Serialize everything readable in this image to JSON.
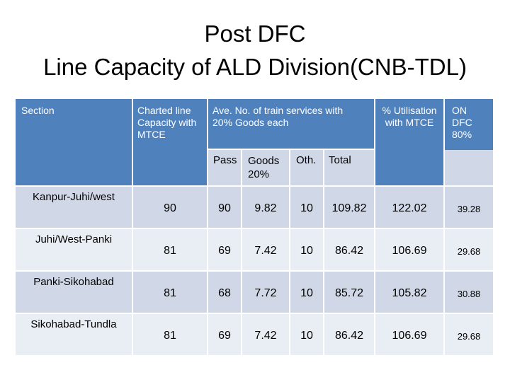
{
  "title_line1": "Post DFC",
  "title_line2": "Line Capacity of ALD Division(CNB-TDL)",
  "headers": {
    "section": "Section",
    "charted_capacity": "Charted line Capacity with MTCE",
    "ave_services": "Ave. No. of train services with 20% Goods each",
    "utilisation": "% Utilisation with MTCE",
    "on_dfc": "ON DFC 80%",
    "sub_pass": "Pass",
    "sub_goods": "Goods 20%",
    "sub_oth": "Oth.",
    "sub_total": "Total"
  },
  "rows": [
    {
      "section": "Kanpur-Juhi/west",
      "capacity": "90",
      "pass": "90",
      "goods": "9.82",
      "oth": "10",
      "total": "109.82",
      "utilisation": "122.02",
      "dfc": "39.28"
    },
    {
      "section": "Juhi/West-Panki",
      "capacity": "81",
      "pass": "69",
      "goods": "7.42",
      "oth": "10",
      "total": "86.42",
      "utilisation": "106.69",
      "dfc": "29.68"
    },
    {
      "section": "Panki-Sikohabad",
      "capacity": "81",
      "pass": "68",
      "goods": "7.72",
      "oth": "10",
      "total": "85.72",
      "utilisation": "105.82",
      "dfc": "30.88"
    },
    {
      "section": "Sikohabad-Tundla",
      "capacity": "81",
      "pass": "69",
      "goods": "7.42",
      "oth": "10",
      "total": "86.42",
      "utilisation": "106.69",
      "dfc": "29.68"
    }
  ]
}
